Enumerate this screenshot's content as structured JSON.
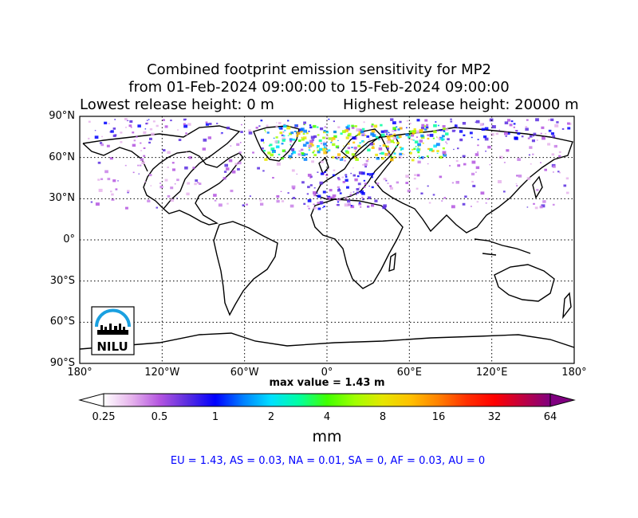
{
  "title": {
    "line1": "Combined footprint emission sensitivity for MP2",
    "line2": "from 01-Feb-2024 09:00:00 to 15-Feb-2024 09:00:00",
    "lowest": "Lowest release height: 0 m",
    "highest": "Highest release height: 20000 m"
  },
  "map": {
    "lat_labels": [
      "90°N",
      "60°N",
      "30°N",
      "0°",
      "30°S",
      "60°S",
      "90°S"
    ],
    "lon_labels": [
      "180°",
      "120°W",
      "60°W",
      "0°",
      "60°E",
      "120°E",
      "180°"
    ],
    "grid": "dotted",
    "logo_text": "NILU"
  },
  "max_value": "max value = 1.43 m",
  "colorbar": {
    "ticks": [
      "0.25",
      "0.5",
      "1",
      "2",
      "4",
      "8",
      "16",
      "32",
      "64"
    ],
    "unit": "mm",
    "colors": [
      "#ffffff",
      "#e6b3ec",
      "#b455e0",
      "#5a2de0",
      "#0000ff",
      "#0080ff",
      "#00e0ff",
      "#00ffa0",
      "#40ff00",
      "#a0ff00",
      "#e6e600",
      "#ffc000",
      "#ff8000",
      "#ff3000",
      "#ff0000",
      "#c00040",
      "#800080"
    ]
  },
  "regions": "EU = 1.43,  AS = 0.03,  NA = 0.01,  SA = 0,  AF = 0.03,  AU = 0"
}
